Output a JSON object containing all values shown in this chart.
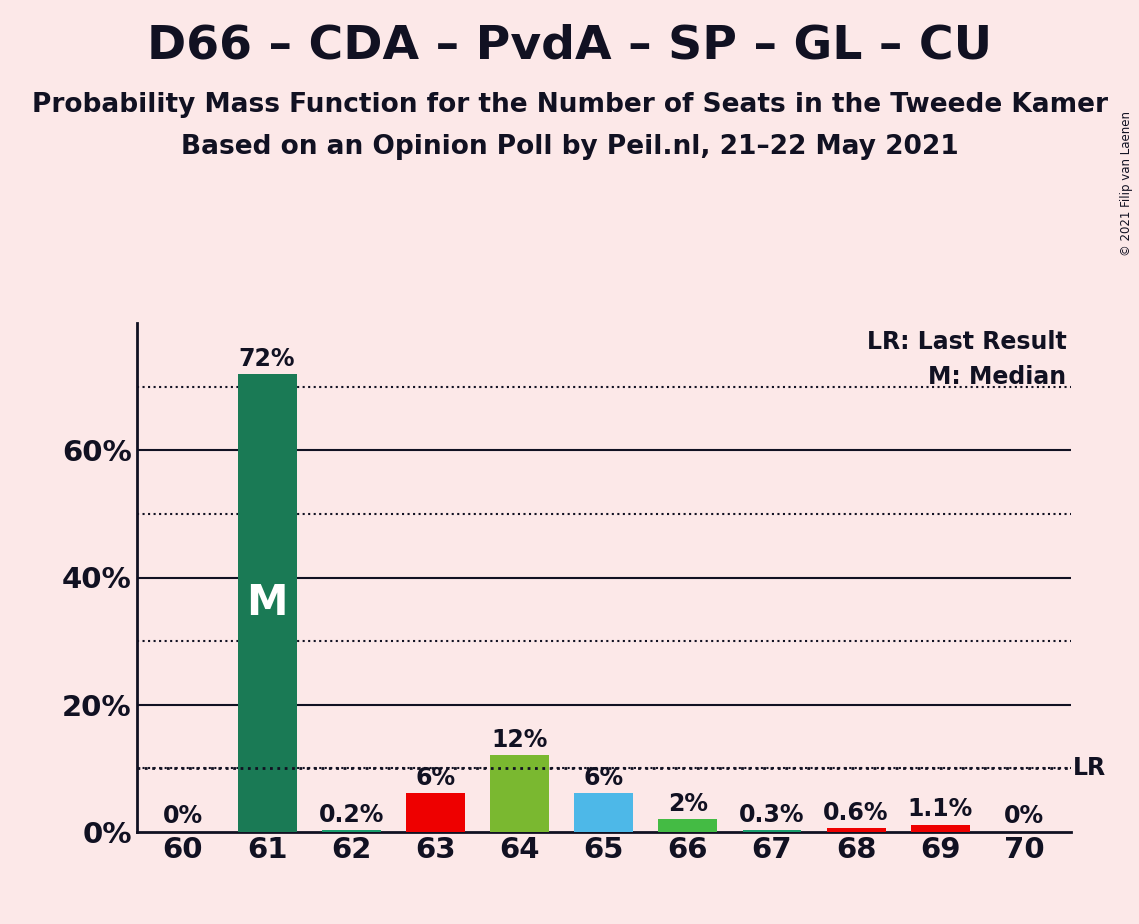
{
  "title": "D66 – CDA – PvdA – SP – GL – CU",
  "subtitle1": "Probability Mass Function for the Number of Seats in the Tweede Kamer",
  "subtitle2": "Based on an Opinion Poll by Peil.nl, 21–22 May 2021",
  "copyright": "© 2021 Filip van Laenen",
  "background_color": "#fce8e8",
  "categories": [
    60,
    61,
    62,
    63,
    64,
    65,
    66,
    67,
    68,
    69,
    70
  ],
  "values": [
    0.0,
    72.0,
    0.2,
    6.0,
    12.0,
    6.0,
    2.0,
    0.3,
    0.6,
    1.1,
    0.0
  ],
  "bar_colors": [
    "#1a9e6e",
    "#1a7a55",
    "#1a9e6e",
    "#ee0000",
    "#7ab830",
    "#4db8e8",
    "#44bb44",
    "#1a9e6e",
    "#ee0000",
    "#ee0000",
    "#1a9e6e"
  ],
  "labels": [
    "0%",
    "72%",
    "0.2%",
    "6%",
    "12%",
    "6%",
    "2%",
    "0.3%",
    "0.6%",
    "1.1%",
    "0%"
  ],
  "lr_value": 10.0,
  "median_seat": 61,
  "ylim": [
    0,
    80
  ],
  "yticks": [
    0,
    20,
    40,
    60
  ],
  "ytick_labels": [
    "0%",
    "20%",
    "40%",
    "60%"
  ],
  "solid_lines": [
    20,
    40,
    60
  ],
  "dotted_lines": [
    10,
    30,
    50,
    70
  ],
  "title_fontsize": 34,
  "subtitle_fontsize": 19,
  "label_fontsize": 17,
  "tick_fontsize": 21,
  "axis_color": "#111122",
  "text_color": "#111122"
}
